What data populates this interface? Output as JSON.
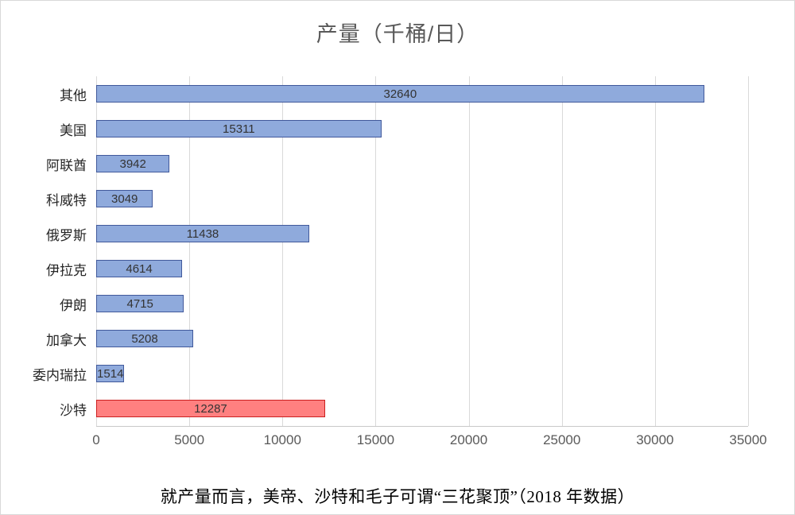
{
  "title": "产量（千桶/日）",
  "caption": "就产量而言，美帝、沙特和毛子可谓“三花聚顶”（2018 年数据）",
  "chart_data": {
    "type": "bar",
    "orientation": "horizontal",
    "title": "产量（千桶/日）",
    "categories": [
      "其他",
      "美国",
      "阿联酋",
      "科威特",
      "俄罗斯",
      "伊拉克",
      "伊朗",
      "加拿大",
      "委内瑞拉",
      "沙特"
    ],
    "values": [
      32640,
      15311,
      3942,
      3049,
      11438,
      4614,
      4715,
      5208,
      1514,
      12287
    ],
    "highlight_index": 9,
    "bar_color": "#8faadc",
    "bar_border": "#41599b",
    "highlight_color": "#ff8080",
    "highlight_border": "#cc1f1f",
    "xlim": [
      0,
      35000
    ],
    "x_ticks": [
      0,
      5000,
      10000,
      15000,
      20000,
      25000,
      30000,
      35000
    ],
    "grid": true,
    "legend": "none",
    "data_labels": "center"
  }
}
